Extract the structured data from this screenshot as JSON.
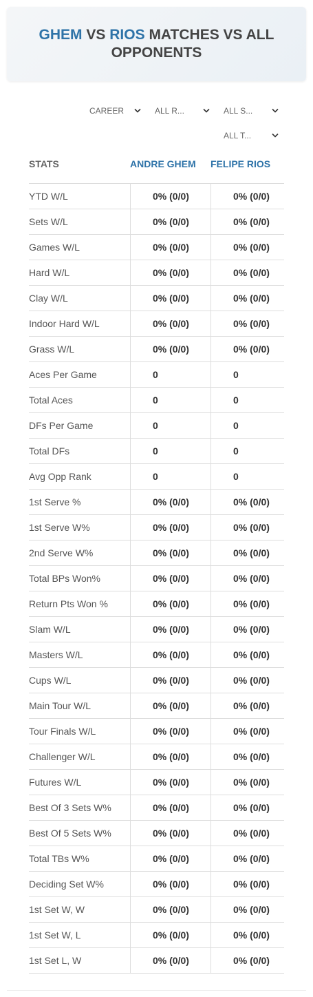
{
  "header": {
    "title": [
      "GHEM",
      "VS",
      "RIOS",
      "MATCHES VS ALL OPPONENTS"
    ]
  },
  "filters": [
    "CAREER",
    "ALL R...",
    "ALL S...",
    "ALL T..."
  ],
  "table": {
    "columns": [
      "STATS",
      "ANDRE GHEM",
      "FELIPE RIOS"
    ],
    "rows": [
      [
        "YTD W/L",
        "0% (0/0)",
        "0% (0/0)"
      ],
      [
        "Sets W/L",
        "0% (0/0)",
        "0% (0/0)"
      ],
      [
        "Games W/L",
        "0% (0/0)",
        "0% (0/0)"
      ],
      [
        "Hard W/L",
        "0% (0/0)",
        "0% (0/0)"
      ],
      [
        "Clay W/L",
        "0% (0/0)",
        "0% (0/0)"
      ],
      [
        "Indoor Hard W/L",
        "0% (0/0)",
        "0% (0/0)"
      ],
      [
        "Grass W/L",
        "0% (0/0)",
        "0% (0/0)"
      ],
      [
        "Aces Per Game",
        "0",
        "0"
      ],
      [
        "Total Aces",
        "0",
        "0"
      ],
      [
        "DFs Per Game",
        "0",
        "0"
      ],
      [
        "Total DFs",
        "0",
        "0"
      ],
      [
        "Avg Opp Rank",
        "0",
        "0"
      ],
      [
        "1st Serve %",
        "0% (0/0)",
        "0% (0/0)"
      ],
      [
        "1st Serve W%",
        "0% (0/0)",
        "0% (0/0)"
      ],
      [
        "2nd Serve W%",
        "0% (0/0)",
        "0% (0/0)"
      ],
      [
        "Total BPs Won%",
        "0% (0/0)",
        "0% (0/0)"
      ],
      [
        "Return Pts Won %",
        "0% (0/0)",
        "0% (0/0)"
      ],
      [
        "Slam W/L",
        "0% (0/0)",
        "0% (0/0)"
      ],
      [
        "Masters W/L",
        "0% (0/0)",
        "0% (0/0)"
      ],
      [
        "Cups W/L",
        "0% (0/0)",
        "0% (0/0)"
      ],
      [
        "Main Tour W/L",
        "0% (0/0)",
        "0% (0/0)"
      ],
      [
        "Tour Finals W/L",
        "0% (0/0)",
        "0% (0/0)"
      ],
      [
        "Challenger W/L",
        "0% (0/0)",
        "0% (0/0)"
      ],
      [
        "Futures W/L",
        "0% (0/0)",
        "0% (0/0)"
      ],
      [
        "Best Of 3 Sets W%",
        "0% (0/0)",
        "0% (0/0)"
      ],
      [
        "Best Of 5 Sets W%",
        "0% (0/0)",
        "0% (0/0)"
      ],
      [
        "Total TBs W%",
        "0% (0/0)",
        "0% (0/0)"
      ],
      [
        "Deciding Set W%",
        "0% (0/0)",
        "0% (0/0)"
      ],
      [
        "1st Set W, W",
        "0% (0/0)",
        "0% (0/0)"
      ],
      [
        "1st Set W, L",
        "0% (0/0)",
        "0% (0/0)"
      ],
      [
        "1st Set L, W",
        "0% (0/0)",
        "0% (0/0)"
      ]
    ]
  }
}
